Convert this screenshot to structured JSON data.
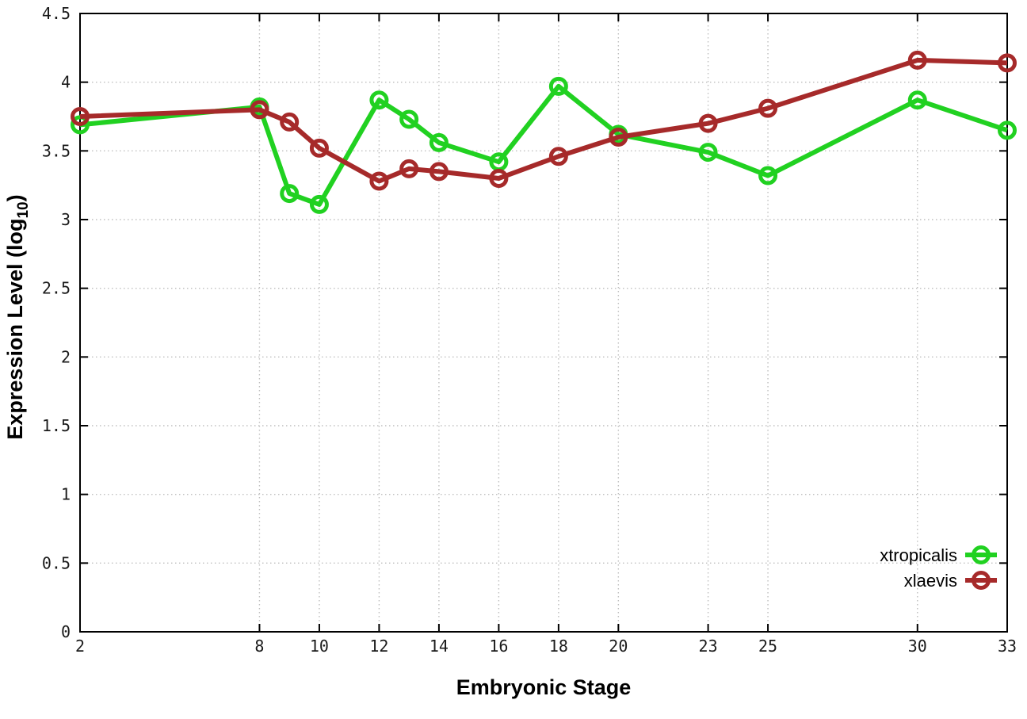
{
  "chart_data": {
    "type": "line",
    "title": "",
    "xlabel": "Embryonic Stage",
    "ylabel": {
      "prefix": "Expression Level (log",
      "sub": "10",
      "suffix": ")"
    },
    "xlim": [
      2,
      33
    ],
    "ylim": [
      0,
      4.5
    ],
    "x_ticks": [
      2,
      8,
      10,
      12,
      14,
      16,
      18,
      20,
      23,
      25,
      30,
      33
    ],
    "y_ticks": [
      "0",
      "0.5",
      "1",
      "1.5",
      "2",
      "2.5",
      "3",
      "3.5",
      "4",
      "4.5"
    ],
    "grid": true,
    "legend_position": "bottom-right",
    "x": [
      2,
      8,
      9,
      10,
      12,
      13,
      14,
      16,
      18,
      20,
      23,
      25,
      30,
      33
    ],
    "series": [
      {
        "name": "xtropicalis",
        "color": "#21d121",
        "marker": "open-circle",
        "values": [
          3.69,
          3.82,
          3.19,
          3.11,
          3.87,
          3.73,
          3.56,
          3.42,
          3.97,
          3.62,
          3.49,
          3.32,
          3.87,
          3.65
        ]
      },
      {
        "name": "xlaevis",
        "color": "#a62a2a",
        "marker": "open-circle",
        "values": [
          3.75,
          3.8,
          3.71,
          3.52,
          3.28,
          3.37,
          3.35,
          3.3,
          3.46,
          3.6,
          3.7,
          3.81,
          4.16,
          4.14
        ]
      }
    ]
  },
  "colors": {
    "grid": "#bfbfbf",
    "border": "#000000",
    "text": "#1a1a1a"
  }
}
